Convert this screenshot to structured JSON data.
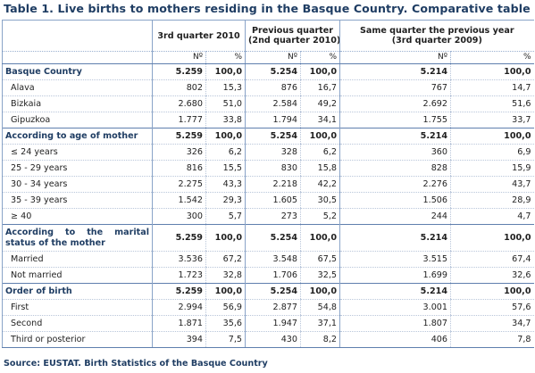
{
  "title": "Table 1. Live births to mothers residing in the Basque Country. Comparative table",
  "columns": {
    "col1": "3rd quarter 2010",
    "col2_line1": "Previous quarter",
    "col2_line2": "(2nd quarter 2010)",
    "col3_line1": "Same quarter the previous year",
    "col3_line2": "(3rd quarter 2009)",
    "num_label": "Nº",
    "pct_label": "%"
  },
  "rows": [
    {
      "label": "Basque Country",
      "group": true,
      "values": [
        "5.259",
        "100,0",
        "5.254",
        "100,0",
        "5.214",
        "100,0"
      ]
    },
    {
      "label": "Alava",
      "values": [
        "802",
        "15,3",
        "876",
        "16,7",
        "767",
        "14,7"
      ]
    },
    {
      "label": "Bizkaia",
      "values": [
        "2.680",
        "51,0",
        "2.584",
        "49,2",
        "2.692",
        "51,6"
      ]
    },
    {
      "label": "Gipuzkoa",
      "values": [
        "1.777",
        "33,8",
        "1.794",
        "34,1",
        "1.755",
        "33,7"
      ]
    },
    {
      "label": "According to age of mother",
      "group": true,
      "values": [
        "5.259",
        "100,0",
        "5.254",
        "100,0",
        "5.214",
        "100,0"
      ]
    },
    {
      "label": "≤ 24 years",
      "values": [
        "326",
        "6,2",
        "328",
        "6,2",
        "360",
        "6,9"
      ]
    },
    {
      "label": "25 - 29 years",
      "values": [
        "816",
        "15,5",
        "830",
        "15,8",
        "828",
        "15,9"
      ]
    },
    {
      "label": "30 - 34 years",
      "values": [
        "2.275",
        "43,3",
        "2.218",
        "42,2",
        "2.276",
        "43,7"
      ]
    },
    {
      "label": "35 - 39 years",
      "values": [
        "1.542",
        "29,3",
        "1.605",
        "30,5",
        "1.506",
        "28,9"
      ]
    },
    {
      "label": "≥ 40",
      "values": [
        "300",
        "5,7",
        "273",
        "5,2",
        "244",
        "4,7"
      ]
    },
    {
      "label": "According to the marital status of the mother",
      "group": true,
      "tall": true,
      "values": [
        "5.259",
        "100,0",
        "5.254",
        "100,0",
        "5.214",
        "100,0"
      ]
    },
    {
      "label": "Married",
      "values": [
        "3.536",
        "67,2",
        "3.548",
        "67,5",
        "3.515",
        "67,4"
      ]
    },
    {
      "label": "Not married",
      "values": [
        "1.723",
        "32,8",
        "1.706",
        "32,5",
        "1.699",
        "32,6"
      ]
    },
    {
      "label": "Order of birth",
      "group": true,
      "values": [
        "5.259",
        "100,0",
        "5.254",
        "100,0",
        "5.214",
        "100,0"
      ]
    },
    {
      "label": "First",
      "values": [
        "2.994",
        "56,9",
        "2.877",
        "54,8",
        "3.001",
        "57,6"
      ]
    },
    {
      "label": "Second",
      "values": [
        "1.871",
        "35,6",
        "1.947",
        "37,1",
        "1.807",
        "34,7"
      ]
    },
    {
      "label": "Third or posterior",
      "values": [
        "394",
        "7,5",
        "430",
        "8,2",
        "406",
        "7,8"
      ]
    }
  ],
  "source": "Source: EUSTAT. Birth Statistics of the  Basque Country"
}
